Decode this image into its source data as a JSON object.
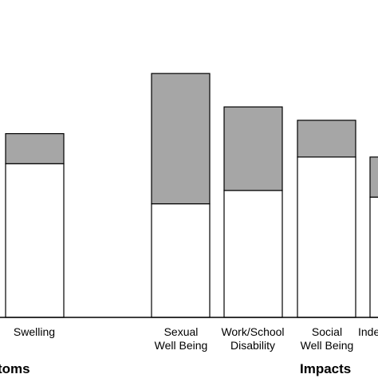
{
  "chart_data": {
    "type": "bar",
    "stacked": true,
    "categories": [
      [
        "Swelling"
      ],
      [
        "Sexual",
        "Well Being"
      ],
      [
        "Work/School",
        "Disability"
      ],
      [
        "Social",
        "Well Being"
      ],
      [
        "Inde"
      ]
    ],
    "series": [
      {
        "color": "#ffffff",
        "values": [
          46,
          34,
          38,
          48,
          36
        ]
      },
      {
        "color": "#a6a6a6",
        "values": [
          9,
          39,
          25,
          11,
          12
        ]
      }
    ],
    "ylim": [
      0,
      95
    ],
    "group_labels": [
      {
        "text": "toms"
      },
      {
        "text": "Impacts"
      }
    ],
    "grid": false
  }
}
